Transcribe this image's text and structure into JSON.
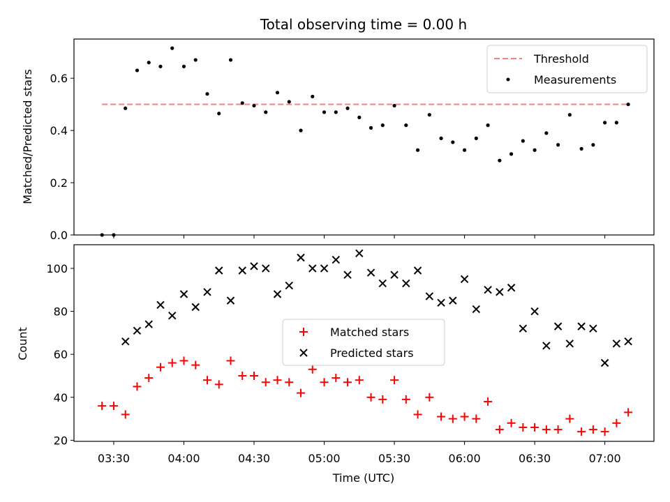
{
  "chart_data": [
    {
      "type": "scatter",
      "title": "Total observing time = 0.00 h",
      "xlabel": "",
      "ylabel": "Matched/Predicted stars",
      "ylim": [
        0,
        0.75
      ],
      "yticks": [
        0.0,
        0.2,
        0.4,
        0.6
      ],
      "ytick_labels": [
        "0.0",
        "0.2",
        "0.4",
        "0.6"
      ],
      "legend_position": "top-right",
      "threshold": {
        "name": "Threshold",
        "value": 0.5,
        "x_range": [
          "03:25",
          "07:10"
        ],
        "color": "#ff7f7f"
      },
      "series": [
        {
          "name": "Measurements",
          "color": "#000000",
          "marker": "dot",
          "x": [
            "03:25",
            "03:30",
            "03:35",
            "03:40",
            "03:45",
            "03:50",
            "03:55",
            "04:00",
            "04:05",
            "04:10",
            "04:15",
            "04:20",
            "04:25",
            "04:30",
            "04:35",
            "04:40",
            "04:45",
            "04:50",
            "04:55",
            "05:00",
            "05:05",
            "05:10",
            "05:15",
            "05:20",
            "05:25",
            "05:30",
            "05:35",
            "05:40",
            "05:45",
            "05:50",
            "05:55",
            "06:00",
            "06:05",
            "06:10",
            "06:15",
            "06:20",
            "06:25",
            "06:30",
            "06:35",
            "06:40",
            "06:45",
            "06:50",
            "06:55",
            "07:00",
            "07:05",
            "07:10"
          ],
          "y": [
            0.0,
            0.0,
            0.485,
            0.63,
            0.66,
            0.645,
            0.715,
            0.645,
            0.67,
            0.54,
            0.465,
            0.67,
            0.505,
            0.495,
            0.47,
            0.545,
            0.51,
            0.4,
            0.53,
            0.47,
            0.47,
            0.485,
            0.45,
            0.41,
            0.42,
            0.495,
            0.42,
            0.325,
            0.46,
            0.37,
            0.355,
            0.325,
            0.37,
            0.42,
            0.285,
            0.31,
            0.36,
            0.325,
            0.39,
            0.345,
            0.46,
            0.33,
            0.345,
            0.43,
            0.43,
            0.5
          ]
        }
      ]
    },
    {
      "type": "scatter",
      "title": "",
      "xlabel": "Time (UTC)",
      "ylabel": "Count",
      "ylim": [
        19.5,
        111
      ],
      "yticks": [
        20,
        40,
        60,
        80,
        100
      ],
      "ytick_labels": [
        "20",
        "40",
        "60",
        "80",
        "100"
      ],
      "xlim": [
        "03:13",
        "07:21"
      ],
      "xticks": [
        "03:30",
        "04:00",
        "04:30",
        "05:00",
        "05:30",
        "06:00",
        "06:30",
        "07:00"
      ],
      "xtick_labels": [
        "03:30",
        "04:00",
        "04:30",
        "05:00",
        "05:30",
        "06:00",
        "06:30",
        "07:00"
      ],
      "legend_position": "center",
      "series": [
        {
          "name": "Matched stars",
          "color": "#ff0000",
          "marker": "+",
          "x": [
            "03:25",
            "03:30",
            "03:35",
            "03:40",
            "03:45",
            "03:50",
            "03:55",
            "04:00",
            "04:05",
            "04:10",
            "04:15",
            "04:20",
            "04:25",
            "04:30",
            "04:35",
            "04:40",
            "04:45",
            "04:50",
            "04:55",
            "05:00",
            "05:05",
            "05:10",
            "05:15",
            "05:20",
            "05:25",
            "05:30",
            "05:35",
            "05:40",
            "05:45",
            "05:50",
            "05:55",
            "06:00",
            "06:05",
            "06:10",
            "06:15",
            "06:20",
            "06:25",
            "06:30",
            "06:35",
            "06:40",
            "06:45",
            "06:50",
            "06:55",
            "07:00",
            "07:05",
            "07:10"
          ],
          "y": [
            36,
            36,
            32,
            45,
            49,
            54,
            56,
            57,
            55,
            48,
            46,
            57,
            50,
            50,
            47,
            48,
            47,
            42,
            53,
            47,
            49,
            47,
            48,
            40,
            39,
            48,
            39,
            32,
            40,
            31,
            30,
            31,
            30,
            38,
            25,
            28,
            26,
            26,
            25,
            25,
            30,
            24,
            25,
            24,
            28,
            33
          ]
        },
        {
          "name": "Predicted stars",
          "color": "#000000",
          "marker": "x",
          "x": [
            "03:35",
            "03:40",
            "03:45",
            "03:50",
            "03:55",
            "04:00",
            "04:05",
            "04:10",
            "04:15",
            "04:20",
            "04:25",
            "04:30",
            "04:35",
            "04:40",
            "04:45",
            "04:50",
            "04:55",
            "05:00",
            "05:05",
            "05:10",
            "05:15",
            "05:20",
            "05:25",
            "05:30",
            "05:35",
            "05:40",
            "05:45",
            "05:50",
            "05:55",
            "06:00",
            "06:05",
            "06:10",
            "06:15",
            "06:20",
            "06:25",
            "06:30",
            "06:35",
            "06:40",
            "06:45",
            "06:50",
            "06:55",
            "07:00",
            "07:05",
            "07:10"
          ],
          "y": [
            66,
            71,
            74,
            83,
            78,
            88,
            82,
            89,
            99,
            85,
            99,
            101,
            100,
            88,
            92,
            105,
            100,
            100,
            104,
            97,
            107,
            98,
            93,
            97,
            93,
            99,
            87,
            84,
            85,
            95,
            81,
            90,
            89,
            91,
            72,
            80,
            64,
            73,
            65,
            73,
            72,
            56,
            65,
            66
          ]
        }
      ]
    }
  ]
}
